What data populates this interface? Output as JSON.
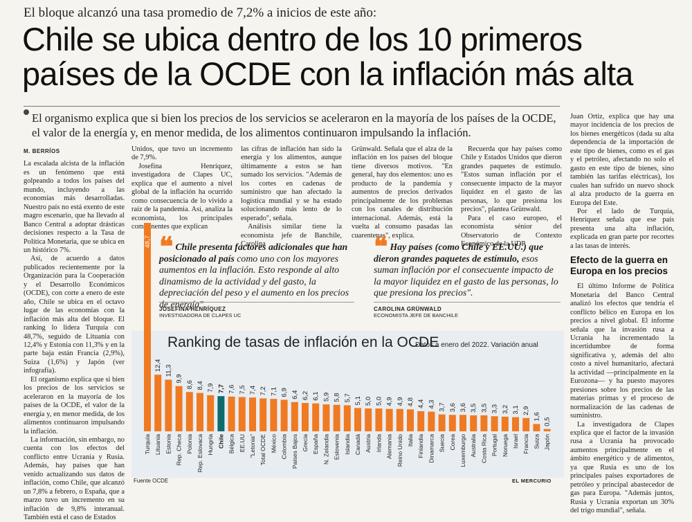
{
  "kicker": "El bloque alcanzó una tasa promedio de 7,2% a inicios de este año:",
  "headline_line1": "Chile se ubica dentro de los 10 primeros",
  "headline_line2": "países de la OCDE con la inflación más alta",
  "lead": "El organismo explica que si bien los precios de los servicios se aceleraron en la mayoría de los países de la OCDE, el valor de la energía y, en menor medida, de los alimentos continuaron impulsando la inflación.",
  "byline": "M. BERRÍOS",
  "col1": [
    "La escalada alcista de la inflación es un fenómeno que está golpeando a todos los países del mundo, incluyendo a las economías más desarrolladas. Nuestro país no está exento de este magro escenario, que ha llevado al Banco Central a adoptar drásticas decisiones respecto a la Tasa de Política Monetaria, que se ubica en un histórico 7%.",
    "Así, de acuerdo a datos publicados recientemente por la Organización para la Cooperación y el Desarrollo Económicos (OCDE), con corte a enero de este año, Chile se ubica en el octavo lugar de las economías con la inflación más alta del bloque. El ranking lo lidera Turquía con 48,7%, seguido de Lituania con 12,4% y Estonia con 11,3% y en la parte baja están Francia (2,9%), Suiza (1,6%) y Japón (ver infografía).",
    "El organismo explica que si bien los precios de los servicios se aceleraron en la mayoría de los países de la OCDE, el valor de la energía y, en menor medida, de los alimentos continuaron impulsando la inflación.",
    "La información, sin embargo, no cuenta con los efectos del conflicto entre Ucrania y Rusia. Además, hay países que han venido actualizando sus datos de inflación, como Chile, que alcanzó un 7,8% a febrero, o España, que a marzo tuvo un incremento en su inflación de 9,8% interanual. También está el caso de Estados"
  ],
  "col2": [
    "Unidos, que tuvo un incremento de 7,9%.",
    "Josefina Henríquez, investigadora de Clapes UC, explica que el aumento a nivel global de la inflación ha ocurrido como consecuencia de lo vivido a raíz de la pandemia. Así, analiza la economista, los principales componentes que explican"
  ],
  "col3": [
    "las cifras de inflación han sido la energía y los alimentos, aunque últimamente a estos se han sumado los servicios. \"Además de los cortes en cadenas de suministro que han afectado la logística mundial y se ha estado solucionando más lento de lo esperado\", señala.",
    "Análisis similar tiene la economista jefe de Banchile, Carolina"
  ],
  "col4": [
    "Grünwald. Señala que el alza de la inflación en los países del bloque tiene diversos motivos. \"En general, hay dos elementos: uno es producto de la pandemia y aumentos de precios derivados principalmente de los problemas con los canales de distribución internacional. Además, está la vuelta al consumo pasadas las cuarentenas\", explica."
  ],
  "col5": [
    "Recuerda que hay países como Chile y Estados Unidos que dieron grandes paquetes de estímulo. \"Estos suman inflación por el consecuente impacto de la mayor liquidez en el gasto de las personas, lo que presiona los precios\", plantea Grünwald.",
    "Para el caso europeo, el economista sénior del Observatorio de Contexto Económico de la UDP,"
  ],
  "col6": [
    "Juan Ortiz, explica que hay una mayor incidencia de los precios de los bienes energéticos (dada su alta dependencia de la importación de este tipo de bienes, como es el gas y el petróleo, afectando no solo el gasto en este tipo de bienes, sino también las tarifas eléctricas), los cuales han sufrido un nuevo shock al alza producto de la guerra en Europa del Este.",
    "Por el lado de Turquía, Henríquez señala que ese país presenta una alta inflación, explicada en gran parte por recortes a las tasas de interés."
  ],
  "subhead": "Efecto de la guerra en Europa en los precios",
  "col6b": [
    "El último Informe de Política Monetaria del Banco Central analizó los efectos que tendría el conflicto bélico en Europa en los precios a nivel global. El informe señala que la invasión rusa a Ucrania ha incrementado la incertidumbre de forma significativa y, además del alto costo a nivel humanitario, afectará la actividad —principalmente en la Eurozona— y ha puesto mayores presiones sobre los precios de las materias primas y el proceso de normalización de las cadenas de suministro.",
    "La investigadora de Clapes explica que el factor de la invasión rusa a Ucrania ha provocado aumentos principalmente en el ámbito energético y de alimentos, ya que Rusia es uno de los principales países exportadores de petróleo y principal abastecedor de gas para Europa. \"Además juntos, Rusia y Ucrania exportan un 30% del trigo mundial\", señala."
  ],
  "quote1": {
    "bold": "Chile presenta factores adicionales que han posicionado al país",
    "rest": " como uno con los mayores aumentos en la inflación. Esto responde al alto dinamismo de la actividad y del gasto, la depreciación del peso y el aumento en los precios de energía\".",
    "name": "JOSEFINA HENRÍQUEZ",
    "role": "INVESTIGADORA DE CLAPES UC"
  },
  "quote2": {
    "bold": "Hay países (como Chile y EE.UU.) que dieron grandes paquetes de estímulo,",
    "rest": " esos suman inflación por el consecuente impacto de la mayor liquidez en el gasto de las personas, lo que presiona los precios\".",
    "name": "CAROLINA GRÜNWALD",
    "role": "ECONOMISTA JEFE DE BANCHILE"
  },
  "source": "Fuente OCDE",
  "paper": "EL MERCURIO",
  "colors": {
    "bar": "#f07a22",
    "highlight": "#0e6b6b",
    "chart_bg": "#e8edf1"
  },
  "chart_data": {
    "type": "bar",
    "title": "Ranking de tasas de inflación en la OCDE",
    "subtitle": "Datos a enero del 2022. Variación anual",
    "categories": [
      "Turquía",
      "Lituania",
      "Estonia",
      "Rep. Checa",
      "Polonia",
      "Rep. Eslovaca",
      "Hungría",
      "Chile",
      "Bélgica",
      "EE.UU",
      "\"Letonia\"",
      "Total OCDE",
      "México",
      "Colombia",
      "Países Bajos",
      "Grecia",
      "España",
      "N. Zelandia",
      "Eslovenia",
      "Islandia",
      "Canadá",
      "Austria",
      "Irlanda",
      "Alemania",
      "Reino Unido",
      "Italia",
      "Finlandia",
      "Dinamarca",
      "Suecia",
      "Corea",
      "Luxemburgo",
      "Australia",
      "Costa Rica",
      "Portugal",
      "Noruega",
      "Israel",
      "Francia",
      "Suiza",
      "Japón"
    ],
    "values": [
      48.7,
      12.4,
      11.3,
      9.9,
      8.6,
      8.4,
      7.9,
      7.7,
      7.6,
      7.5,
      7.4,
      7.2,
      7.1,
      6.9,
      6.4,
      6.2,
      6.1,
      5.9,
      5.8,
      5.7,
      5.1,
      5.0,
      5.0,
      4.9,
      4.9,
      4.8,
      4.4,
      4.3,
      3.7,
      3.6,
      3.6,
      3.5,
      3.5,
      3.3,
      3.2,
      3.1,
      2.9,
      1.6,
      0.5
    ],
    "labels": [
      "48,7",
      "12,4",
      "11,3",
      "9,9",
      "8,6",
      "8,4",
      "7,9",
      "7,7",
      "7,6",
      "7,5",
      "7,4",
      "7,2",
      "7,1",
      "6,9",
      "6,4",
      "6,2",
      "6,1",
      "5,9",
      "5,8",
      "5,7",
      "5,1",
      "5,0",
      "5,0",
      "4,9",
      "4,9",
      "4,8",
      "4,4",
      "4,3",
      "3,7",
      "3,6",
      "3,6",
      "3,5",
      "3,5",
      "3,3",
      "3,2",
      "3,1",
      "2,9",
      "1,6",
      "0,5"
    ],
    "highlight": "Chile"
  }
}
